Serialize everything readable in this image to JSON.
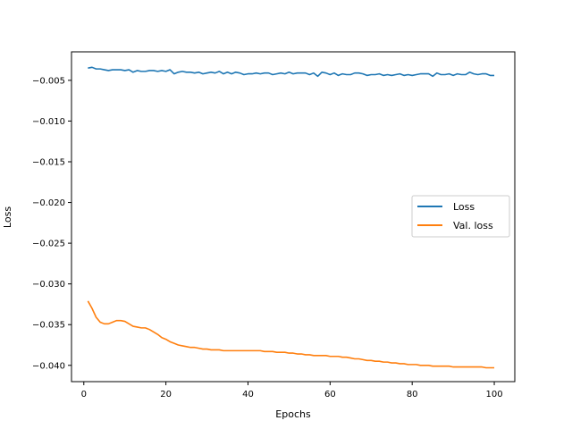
{
  "chart_data": {
    "type": "line",
    "title": "",
    "xlabel": "Epochs",
    "ylabel": "Loss",
    "xlim": [
      -3,
      105
    ],
    "ylim": [
      -0.042,
      -0.0015
    ],
    "xticks": [
      0,
      20,
      40,
      60,
      80,
      100
    ],
    "xtick_labels": [
      "0",
      "20",
      "40",
      "60",
      "80",
      "100"
    ],
    "yticks": [
      -0.04,
      -0.035,
      -0.03,
      -0.025,
      -0.02,
      -0.015,
      -0.01,
      -0.005
    ],
    "ytick_labels": [
      "−0.040",
      "−0.035",
      "−0.030",
      "−0.025",
      "−0.020",
      "−0.015",
      "−0.010",
      "−0.005"
    ],
    "grid": false,
    "legend_position": "center-right",
    "series": [
      {
        "name": "Loss",
        "color": "#1f77b4",
        "x": [
          1,
          2,
          3,
          4,
          5,
          6,
          7,
          8,
          9,
          10,
          11,
          12,
          13,
          14,
          15,
          16,
          17,
          18,
          19,
          20,
          21,
          22,
          23,
          24,
          25,
          26,
          27,
          28,
          29,
          30,
          31,
          32,
          33,
          34,
          35,
          36,
          37,
          38,
          39,
          40,
          41,
          42,
          43,
          44,
          45,
          46,
          47,
          48,
          49,
          50,
          51,
          52,
          53,
          54,
          55,
          56,
          57,
          58,
          59,
          60,
          61,
          62,
          63,
          64,
          65,
          66,
          67,
          68,
          69,
          70,
          71,
          72,
          73,
          74,
          75,
          76,
          77,
          78,
          79,
          80,
          81,
          82,
          83,
          84,
          85,
          86,
          87,
          88,
          89,
          90,
          91,
          92,
          93,
          94,
          95,
          96,
          97,
          98,
          99,
          100
        ],
        "y": [
          -0.0035,
          -0.0034,
          -0.0036,
          -0.0036,
          -0.0037,
          -0.0038,
          -0.0037,
          -0.0037,
          -0.0037,
          -0.0038,
          -0.0037,
          -0.004,
          -0.0038,
          -0.0039,
          -0.0039,
          -0.0038,
          -0.0038,
          -0.0039,
          -0.0038,
          -0.0039,
          -0.0037,
          -0.0042,
          -0.004,
          -0.0039,
          -0.004,
          -0.004,
          -0.0041,
          -0.004,
          -0.0042,
          -0.0041,
          -0.004,
          -0.0041,
          -0.0039,
          -0.0042,
          -0.004,
          -0.0042,
          -0.004,
          -0.0041,
          -0.0043,
          -0.0042,
          -0.0042,
          -0.0041,
          -0.0042,
          -0.0041,
          -0.0041,
          -0.0043,
          -0.0042,
          -0.0041,
          -0.0042,
          -0.004,
          -0.0042,
          -0.0041,
          -0.0041,
          -0.0041,
          -0.0043,
          -0.0041,
          -0.0045,
          -0.004,
          -0.0041,
          -0.0043,
          -0.0041,
          -0.0044,
          -0.0042,
          -0.0043,
          -0.0043,
          -0.0041,
          -0.0041,
          -0.0042,
          -0.0044,
          -0.0043,
          -0.0043,
          -0.0042,
          -0.0044,
          -0.0043,
          -0.0044,
          -0.0043,
          -0.0042,
          -0.0044,
          -0.0043,
          -0.0044,
          -0.0043,
          -0.0042,
          -0.0042,
          -0.0042,
          -0.0045,
          -0.0041,
          -0.0043,
          -0.0043,
          -0.0042,
          -0.0044,
          -0.0042,
          -0.0043,
          -0.0043,
          -0.004,
          -0.0042,
          -0.0043,
          -0.0042,
          -0.0042,
          -0.0044,
          -0.0044
        ]
      },
      {
        "name": "Val. loss",
        "color": "#ff7f0e",
        "x": [
          1,
          2,
          3,
          4,
          5,
          6,
          7,
          8,
          9,
          10,
          11,
          12,
          13,
          14,
          15,
          16,
          17,
          18,
          19,
          20,
          21,
          22,
          23,
          24,
          25,
          26,
          27,
          28,
          29,
          30,
          31,
          32,
          33,
          34,
          35,
          36,
          37,
          38,
          39,
          40,
          41,
          42,
          43,
          44,
          45,
          46,
          47,
          48,
          49,
          50,
          51,
          52,
          53,
          54,
          55,
          56,
          57,
          58,
          59,
          60,
          61,
          62,
          63,
          64,
          65,
          66,
          67,
          68,
          69,
          70,
          71,
          72,
          73,
          74,
          75,
          76,
          77,
          78,
          79,
          80,
          81,
          82,
          83,
          84,
          85,
          86,
          87,
          88,
          89,
          90,
          91,
          92,
          93,
          94,
          95,
          96,
          97,
          98,
          99,
          100
        ],
        "y": [
          -0.0321,
          -0.033,
          -0.0341,
          -0.0347,
          -0.0349,
          -0.0349,
          -0.0347,
          -0.0345,
          -0.0345,
          -0.0346,
          -0.0349,
          -0.0352,
          -0.0353,
          -0.0354,
          -0.0354,
          -0.0356,
          -0.0359,
          -0.0362,
          -0.0366,
          -0.0368,
          -0.0371,
          -0.0373,
          -0.0375,
          -0.0376,
          -0.0377,
          -0.0378,
          -0.0378,
          -0.0379,
          -0.038,
          -0.038,
          -0.0381,
          -0.0381,
          -0.0381,
          -0.0382,
          -0.0382,
          -0.0382,
          -0.0382,
          -0.0382,
          -0.0382,
          -0.0382,
          -0.0382,
          -0.0382,
          -0.0382,
          -0.0383,
          -0.0383,
          -0.0383,
          -0.0384,
          -0.0384,
          -0.0384,
          -0.0385,
          -0.0385,
          -0.0386,
          -0.0386,
          -0.0387,
          -0.0387,
          -0.0388,
          -0.0388,
          -0.0388,
          -0.0388,
          -0.0389,
          -0.0389,
          -0.0389,
          -0.039,
          -0.039,
          -0.0391,
          -0.0392,
          -0.0392,
          -0.0393,
          -0.0394,
          -0.0394,
          -0.0395,
          -0.0395,
          -0.0396,
          -0.0396,
          -0.0397,
          -0.0397,
          -0.0398,
          -0.0398,
          -0.0399,
          -0.0399,
          -0.0399,
          -0.04,
          -0.04,
          -0.04,
          -0.0401,
          -0.0401,
          -0.0401,
          -0.0401,
          -0.0401,
          -0.0402,
          -0.0402,
          -0.0402,
          -0.0402,
          -0.0402,
          -0.0402,
          -0.0402,
          -0.0402,
          -0.0403,
          -0.0403,
          -0.0403
        ]
      }
    ]
  }
}
